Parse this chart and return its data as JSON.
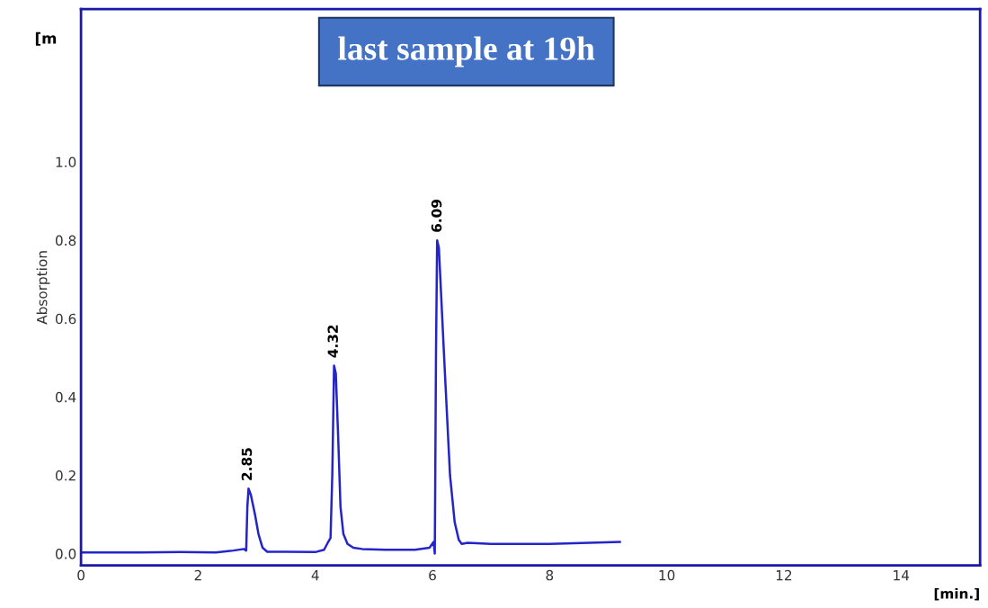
{
  "chart_data": {
    "type": "line",
    "title": "last sample at 19h",
    "xlabel": "[min.]",
    "ylabel": "Absorption",
    "annotations": [
      "[m",
      {
        "text": "2.85",
        "x": 2.85,
        "y": 0.166
      },
      {
        "text": "4.32",
        "x": 4.32,
        "y": 0.48
      },
      {
        "text": "6.09",
        "x": 6.09,
        "y": 0.8
      }
    ],
    "series": [
      {
        "color": "#2424c8",
        "x": [
          0,
          1.0,
          1.7,
          2.3,
          2.6,
          2.78,
          2.82,
          2.84,
          2.86,
          2.9,
          2.97,
          3.03,
          3.1,
          3.18,
          3.5,
          4.0,
          4.15,
          4.22,
          4.26,
          4.29,
          4.32,
          4.35,
          4.39,
          4.43,
          4.48,
          4.55,
          4.65,
          4.8,
          5.2,
          5.7,
          5.95,
          6.02,
          6.04,
          6.06,
          6.08,
          6.11,
          6.2,
          6.3,
          6.38,
          6.45,
          6.5,
          6.6,
          7.0,
          8.0,
          9.2
        ],
        "values": [
          0.003,
          0.003,
          0.004,
          0.003,
          0.008,
          0.012,
          0.008,
          0.12,
          0.166,
          0.15,
          0.1,
          0.05,
          0.015,
          0.005,
          0.005,
          0.004,
          0.01,
          0.03,
          0.04,
          0.2,
          0.48,
          0.46,
          0.3,
          0.12,
          0.05,
          0.025,
          0.015,
          0.012,
          0.01,
          0.01,
          0.015,
          0.03,
          0.0,
          0.5,
          0.8,
          0.78,
          0.5,
          0.2,
          0.08,
          0.035,
          0.025,
          0.028,
          0.025,
          0.025,
          0.03
        ]
      }
    ],
    "xlim": [
      0,
      15.35
    ],
    "ylim": [
      -0.03,
      1.39
    ],
    "xticks": [
      0,
      2,
      4,
      6,
      8,
      10,
      12,
      14
    ],
    "yticks": [
      {
        "value": 0,
        "label": "0.0"
      },
      0.2,
      0.4,
      0.6,
      0.8,
      {
        "value": 1,
        "label": "1.0"
      }
    ],
    "grid": false,
    "legend": false,
    "marker": "none",
    "line_style": "solid"
  }
}
